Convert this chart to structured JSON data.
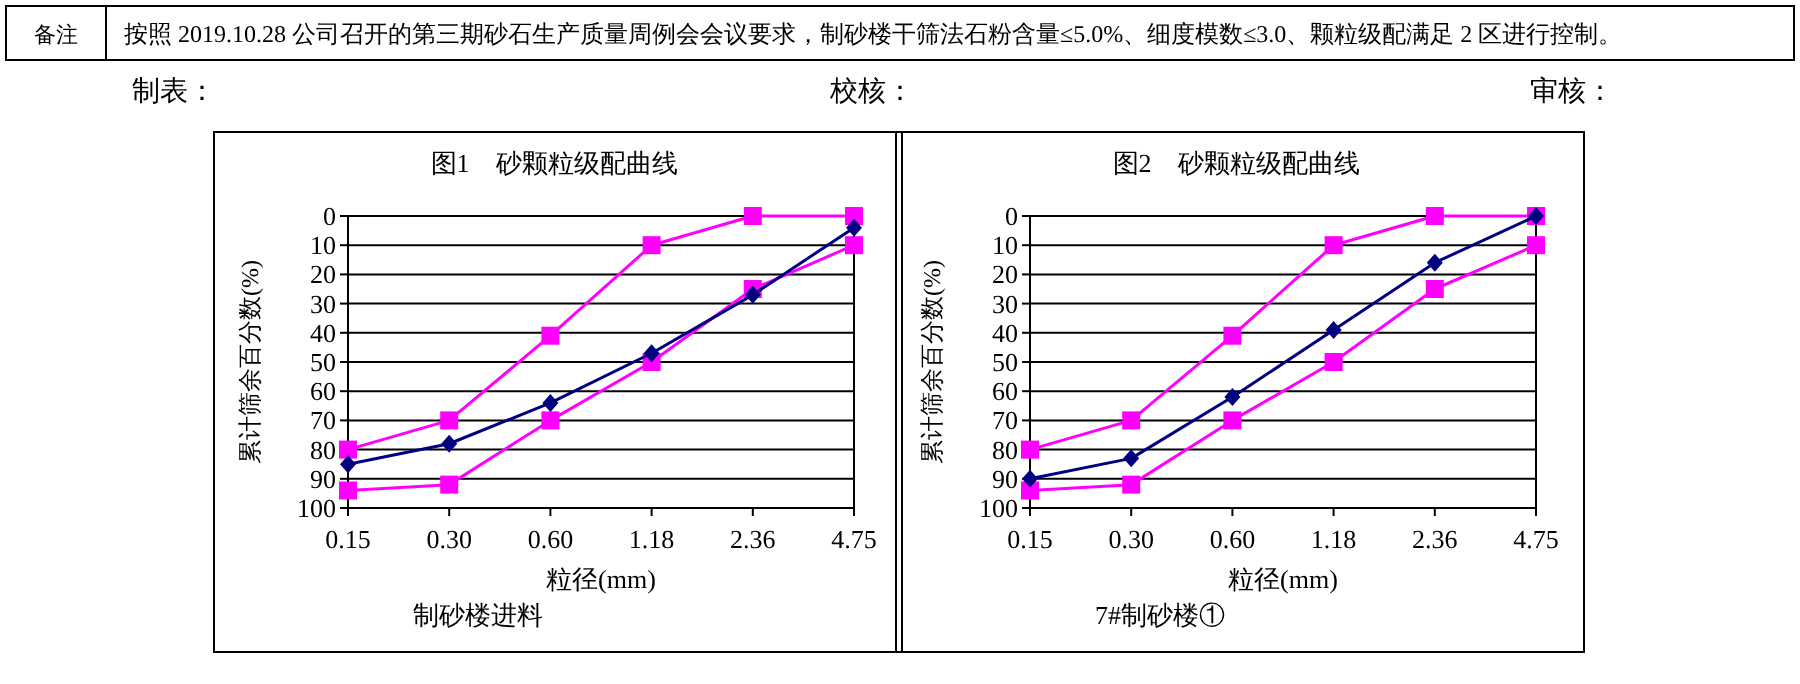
{
  "chart_data": [
    {
      "type": "other",
      "annotations": [
        "备注",
        "按照 2019.10.28 公司召开的第三期砂石生产质量周例会会议要求，制砂楼干筛法石粉含量≤5.0%、细度模数≤3.0、颗粒级配满足 2 区进行控制。",
        "制表：",
        "校核：",
        "审核："
      ]
    },
    {
      "type": "line",
      "title": "图1　砂颗粒级配曲线",
      "xlabel": "粒径(mm)",
      "ylabel": "累计筛余百分数(%)",
      "categories": [
        "0.15",
        "0.30",
        "0.60",
        "1.18",
        "2.36",
        "4.75"
      ],
      "ylim": [
        100,
        0
      ],
      "yticks": [
        0,
        10,
        20,
        30,
        40,
        50,
        60,
        70,
        80,
        90,
        100
      ],
      "grid": "y",
      "annotations": [
        "制砂楼进料"
      ],
      "series": [
        {
          "color": "#ff00ff",
          "marker": "square",
          "values": [
            80,
            70,
            41,
            10,
            0,
            0
          ]
        },
        {
          "color": "#ff00ff",
          "marker": "square",
          "values": [
            94,
            92,
            70,
            50,
            25,
            10
          ]
        },
        {
          "color": "#000080",
          "marker": "diamond",
          "values": [
            85,
            78,
            64,
            47,
            27,
            4
          ]
        }
      ]
    },
    {
      "type": "line",
      "title": "图2　砂颗粒级配曲线",
      "xlabel": "粒径(mm)",
      "ylabel": "累计筛余百分数(%)",
      "categories": [
        "0.15",
        "0.30",
        "0.60",
        "1.18",
        "2.36",
        "4.75"
      ],
      "ylim": [
        100,
        0
      ],
      "yticks": [
        0,
        10,
        20,
        30,
        40,
        50,
        60,
        70,
        80,
        90,
        100
      ],
      "grid": "y",
      "annotations": [
        "7#制砂楼①"
      ],
      "series": [
        {
          "color": "#ff00ff",
          "marker": "square",
          "values": [
            80,
            70,
            41,
            10,
            0,
            0
          ]
        },
        {
          "color": "#ff00ff",
          "marker": "square",
          "values": [
            94,
            92,
            70,
            50,
            25,
            10
          ]
        },
        {
          "color": "#000080",
          "marker": "diamond",
          "values": [
            90,
            83,
            62,
            39,
            16,
            0
          ]
        }
      ]
    }
  ]
}
